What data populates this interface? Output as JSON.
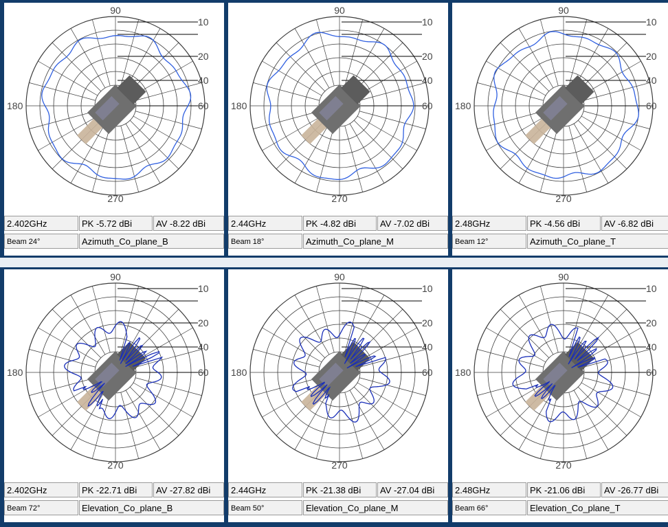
{
  "chart_data": [
    {
      "type": "polar",
      "angle_labels": [
        "90",
        "180",
        "270"
      ],
      "radial_labels": [
        "10",
        "20",
        "40",
        "60"
      ],
      "frequency": "2.402GHz",
      "peak": "PK -5.72 dBi",
      "average": "AV -8.22 dBi",
      "beam": "Beam 24°",
      "plane": "Azimuth_Co_plane_B",
      "trace_color": "#2f5fe0"
    },
    {
      "type": "polar",
      "angle_labels": [
        "90",
        "180",
        "270"
      ],
      "radial_labels": [
        "10",
        "20",
        "40",
        "60"
      ],
      "frequency": "2.44GHz",
      "peak": "PK -4.82 dBi",
      "average": "AV -7.02 dBi",
      "beam": "Beam 18°",
      "plane": "Azimuth_Co_plane_M",
      "trace_color": "#2f5fe0"
    },
    {
      "type": "polar",
      "angle_labels": [
        "90",
        "180",
        "270"
      ],
      "radial_labels": [
        "10",
        "20",
        "40",
        "60"
      ],
      "frequency": "2.48GHz",
      "peak": "PK -4.56 dBi",
      "average": "AV -6.82 dBi",
      "beam": "Beam 12°",
      "plane": "Azimuth_Co_plane_T",
      "trace_color": "#2f5fe0"
    },
    {
      "type": "polar",
      "angle_labels": [
        "90",
        "180",
        "270"
      ],
      "radial_labels": [
        "10",
        "20",
        "40",
        "60"
      ],
      "frequency": "2.402GHz",
      "peak": "PK -22.71 dBi",
      "average": "AV -27.82 dBi",
      "beam": "Beam 72°",
      "plane": "Elevation_Co_plane_B",
      "trace_color": "#1a2fb8"
    },
    {
      "type": "polar",
      "angle_labels": [
        "90",
        "180",
        "270"
      ],
      "radial_labels": [
        "10",
        "20",
        "40",
        "60"
      ],
      "frequency": "2.44GHz",
      "peak": "PK -21.38 dBi",
      "average": "AV -27.04 dBi",
      "beam": "Beam 50°",
      "plane": "Elevation_Co_plane_M",
      "trace_color": "#1a2fb8"
    },
    {
      "type": "polar",
      "angle_labels": [
        "90",
        "180",
        "270"
      ],
      "radial_labels": [
        "10",
        "20",
        "40",
        "60"
      ],
      "frequency": "2.48GHz",
      "peak": "PK -21.06 dBi",
      "average": "AV -26.77 dBi",
      "beam": "Beam 66°",
      "plane": "Elevation_Co_plane_T",
      "trace_color": "#1a2fb8"
    }
  ]
}
